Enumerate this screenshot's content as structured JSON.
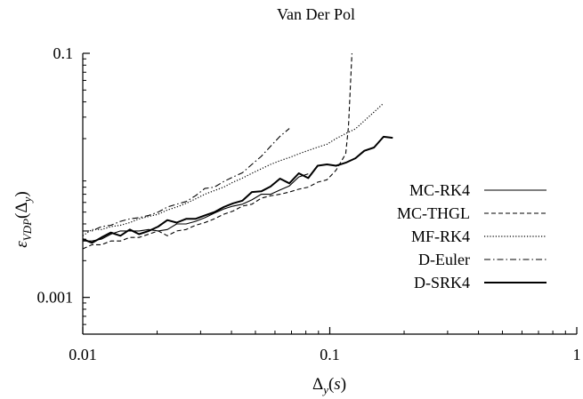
{
  "chart_data": {
    "type": "line",
    "title": "Van Der Pol",
    "xlabel": "Δ_y(s)",
    "ylabel": "ε_VDP(Δ_y)",
    "xscale": "log",
    "yscale": "log",
    "xlim": [
      0.01,
      1
    ],
    "ylim": [
      0.0005,
      0.1
    ],
    "xticks": [
      0.01,
      0.1,
      1
    ],
    "xtick_labels": [
      "0.01",
      "0.1",
      "1"
    ],
    "yticks": [
      0.001,
      0.1
    ],
    "ytick_labels": [
      "0.001",
      "0.1"
    ],
    "grid": false,
    "legend_position": "right",
    "series": [
      {
        "name": "MC-RK4",
        "style": "solid-thin",
        "points": [
          [
            0.01,
            0.0029
          ],
          [
            0.0109,
            0.0029
          ],
          [
            0.0119,
            0.003
          ],
          [
            0.013,
            0.0033
          ],
          [
            0.0142,
            0.0035
          ],
          [
            0.0155,
            0.0035
          ],
          [
            0.0169,
            0.0035
          ],
          [
            0.0185,
            0.0036
          ],
          [
            0.0202,
            0.0035
          ],
          [
            0.022,
            0.0036
          ],
          [
            0.024,
            0.004
          ],
          [
            0.0262,
            0.004
          ],
          [
            0.0286,
            0.0042
          ],
          [
            0.0312,
            0.0045
          ],
          [
            0.0341,
            0.0049
          ],
          [
            0.0372,
            0.0053
          ],
          [
            0.0406,
            0.0056
          ],
          [
            0.0443,
            0.0058
          ],
          [
            0.0484,
            0.0063
          ],
          [
            0.0528,
            0.007
          ],
          [
            0.0576,
            0.007
          ],
          [
            0.0629,
            0.0076
          ],
          [
            0.0686,
            0.0082
          ],
          [
            0.0749,
            0.0097
          ],
          [
            0.0818,
            0.0103
          ]
        ]
      },
      {
        "name": "MC-THGL",
        "style": "dashed",
        "points": [
          [
            0.01,
            0.0025
          ],
          [
            0.0109,
            0.0027
          ],
          [
            0.0119,
            0.0027
          ],
          [
            0.013,
            0.0029
          ],
          [
            0.0142,
            0.0029
          ],
          [
            0.0155,
            0.0031
          ],
          [
            0.0169,
            0.0031
          ],
          [
            0.0185,
            0.0033
          ],
          [
            0.0202,
            0.0035
          ],
          [
            0.022,
            0.0032
          ],
          [
            0.024,
            0.0035
          ],
          [
            0.0262,
            0.0036
          ],
          [
            0.0286,
            0.0039
          ],
          [
            0.0312,
            0.0041
          ],
          [
            0.0341,
            0.0044
          ],
          [
            0.0372,
            0.0048
          ],
          [
            0.0406,
            0.0051
          ],
          [
            0.0443,
            0.0056
          ],
          [
            0.0484,
            0.0058
          ],
          [
            0.0528,
            0.0065
          ],
          [
            0.0576,
            0.0068
          ],
          [
            0.0629,
            0.007
          ],
          [
            0.0686,
            0.0073
          ],
          [
            0.0749,
            0.0077
          ],
          [
            0.0818,
            0.008
          ],
          [
            0.0893,
            0.0088
          ],
          [
            0.0975,
            0.0092
          ],
          [
            0.106,
            0.011
          ],
          [
            0.116,
            0.015
          ],
          [
            0.119,
            0.025
          ],
          [
            0.123,
            0.1
          ]
        ]
      },
      {
        "name": "MF-RK4",
        "style": "dotted",
        "points": [
          [
            0.01,
            0.0032
          ],
          [
            0.0109,
            0.0036
          ],
          [
            0.0119,
            0.0036
          ],
          [
            0.013,
            0.0038
          ],
          [
            0.0142,
            0.0039
          ],
          [
            0.0155,
            0.0041
          ],
          [
            0.0169,
            0.0044
          ],
          [
            0.0185,
            0.0046
          ],
          [
            0.0202,
            0.0048
          ],
          [
            0.022,
            0.0052
          ],
          [
            0.024,
            0.0055
          ],
          [
            0.0262,
            0.0059
          ],
          [
            0.0286,
            0.0064
          ],
          [
            0.0312,
            0.007
          ],
          [
            0.0341,
            0.0075
          ],
          [
            0.0372,
            0.008
          ],
          [
            0.0406,
            0.0088
          ],
          [
            0.0443,
            0.0095
          ],
          [
            0.0484,
            0.0104
          ],
          [
            0.0528,
            0.0113
          ],
          [
            0.0576,
            0.0123
          ],
          [
            0.0629,
            0.0132
          ],
          [
            0.0686,
            0.014
          ],
          [
            0.0749,
            0.015
          ],
          [
            0.0818,
            0.016
          ],
          [
            0.0893,
            0.017
          ],
          [
            0.0975,
            0.018
          ],
          [
            0.106,
            0.02
          ],
          [
            0.116,
            0.022
          ],
          [
            0.127,
            0.024
          ],
          [
            0.138,
            0.028
          ],
          [
            0.151,
            0.033
          ],
          [
            0.165,
            0.039
          ]
        ]
      },
      {
        "name": "D-Euler",
        "style": "dashdot",
        "points": [
          [
            0.01,
            0.0035
          ],
          [
            0.0109,
            0.0035
          ],
          [
            0.0119,
            0.0038
          ],
          [
            0.013,
            0.0039
          ],
          [
            0.0142,
            0.0042
          ],
          [
            0.0155,
            0.0044
          ],
          [
            0.0169,
            0.0045
          ],
          [
            0.0185,
            0.0047
          ],
          [
            0.0202,
            0.005
          ],
          [
            0.022,
            0.0055
          ],
          [
            0.024,
            0.0058
          ],
          [
            0.0262,
            0.0061
          ],
          [
            0.0286,
            0.0068
          ],
          [
            0.0312,
            0.0078
          ],
          [
            0.0341,
            0.008
          ],
          [
            0.0372,
            0.0089
          ],
          [
            0.0406,
            0.0097
          ],
          [
            0.0443,
            0.0105
          ],
          [
            0.0484,
            0.0123
          ],
          [
            0.0528,
            0.0143
          ],
          [
            0.0576,
            0.0173
          ],
          [
            0.0629,
            0.0209
          ],
          [
            0.0686,
            0.0242
          ]
        ]
      },
      {
        "name": "D-SRK4",
        "style": "solid-thick",
        "points": [
          [
            0.01,
            0.003
          ],
          [
            0.0109,
            0.0028
          ],
          [
            0.0119,
            0.0031
          ],
          [
            0.013,
            0.0034
          ],
          [
            0.0142,
            0.0032
          ],
          [
            0.0155,
            0.0036
          ],
          [
            0.0169,
            0.0033
          ],
          [
            0.0185,
            0.0035
          ],
          [
            0.0202,
            0.0038
          ],
          [
            0.022,
            0.0043
          ],
          [
            0.024,
            0.0041
          ],
          [
            0.0262,
            0.0044
          ],
          [
            0.0286,
            0.0044
          ],
          [
            0.0312,
            0.0047
          ],
          [
            0.0341,
            0.005
          ],
          [
            0.0372,
            0.0055
          ],
          [
            0.0406,
            0.0059
          ],
          [
            0.0443,
            0.0062
          ],
          [
            0.0484,
            0.0073
          ],
          [
            0.0528,
            0.0074
          ],
          [
            0.0576,
            0.0081
          ],
          [
            0.0629,
            0.0094
          ],
          [
            0.0686,
            0.0086
          ],
          [
            0.0749,
            0.0104
          ],
          [
            0.0818,
            0.0095
          ],
          [
            0.0893,
            0.012
          ],
          [
            0.0975,
            0.0123
          ],
          [
            0.106,
            0.012
          ],
          [
            0.116,
            0.0127
          ],
          [
            0.127,
            0.0138
          ],
          [
            0.138,
            0.0159
          ],
          [
            0.151,
            0.0169
          ],
          [
            0.165,
            0.0207
          ],
          [
            0.18,
            0.0203
          ]
        ]
      }
    ]
  }
}
